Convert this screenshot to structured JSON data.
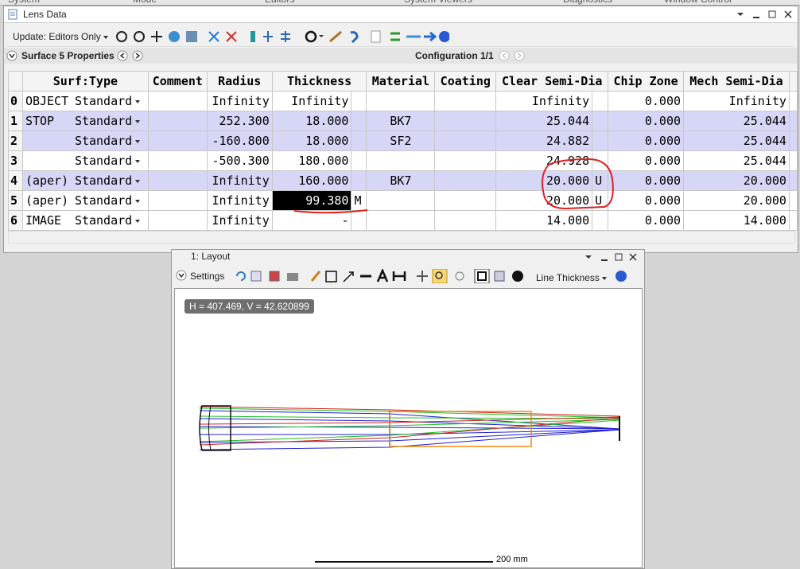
{
  "menu_tabs": [
    "System",
    "Mode",
    "Editors",
    "System Viewers",
    "Diagnostics",
    "Window Control"
  ],
  "lens_data": {
    "title": "Lens Data",
    "update": "Update: Editors Only",
    "surface_properties": "Surface 5 Properties",
    "configuration": "Configuration 1/1",
    "columns": [
      "Surf:Type",
      "Comment",
      "Radius",
      "Thickness",
      "Material",
      "Coating",
      "Clear Semi-Dia",
      "Chip Zone",
      "Mech Semi-Dia"
    ],
    "rows": [
      {
        "surf": "0",
        "label": "OBJECT",
        "type": "Standard",
        "radius": "Infinity",
        "thickness": "Infinity",
        "clear_semi_dia": "Infinity",
        "chip_zone": "0.000",
        "mech_semi_dia": "Infinity"
      },
      {
        "surf": "1",
        "label": "STOP",
        "type": "Standard",
        "radius": "252.300",
        "thickness": "18.000",
        "material": "BK7",
        "clear_semi_dia": "25.044",
        "chip_zone": "0.000",
        "mech_semi_dia": "25.044"
      },
      {
        "surf": "2",
        "type": "Standard",
        "radius": "-160.800",
        "thickness": "18.000",
        "material": "SF2",
        "clear_semi_dia": "24.882",
        "chip_zone": "0.000",
        "mech_semi_dia": "25.044"
      },
      {
        "surf": "3",
        "type": "Standard",
        "radius": "-500.300",
        "thickness": "180.000",
        "clear_semi_dia": "24.928",
        "chip_zone": "0.000",
        "mech_semi_dia": "25.044"
      },
      {
        "surf": "4",
        "label": "(aper)",
        "type": "Standard",
        "radius": "Infinity",
        "thickness": "160.000",
        "material": "BK7",
        "clear_semi_dia": "20.000",
        "clear_solve": "U",
        "chip_zone": "0.000",
        "mech_semi_dia": "20.000"
      },
      {
        "surf": "5",
        "label": "(aper)",
        "type": "Standard",
        "radius": "Infinity",
        "thickness": "99.380",
        "thickness_solve": "M",
        "clear_semi_dia": "20.000",
        "clear_solve": "U",
        "chip_zone": "0.000",
        "mech_semi_dia": "20.000"
      },
      {
        "surf": "6",
        "label": "IMAGE",
        "type": "Standard",
        "radius": "Infinity",
        "thickness": "-",
        "clear_semi_dia": "14.000",
        "chip_zone": "0.000",
        "mech_semi_dia": "14.000"
      }
    ]
  },
  "layout": {
    "title": "1: Layout",
    "settings": "Settings",
    "line_thickness": "Line Thickness",
    "cursor": "H = 407.469, V = 42.620899",
    "scale_label": "200 mm"
  }
}
